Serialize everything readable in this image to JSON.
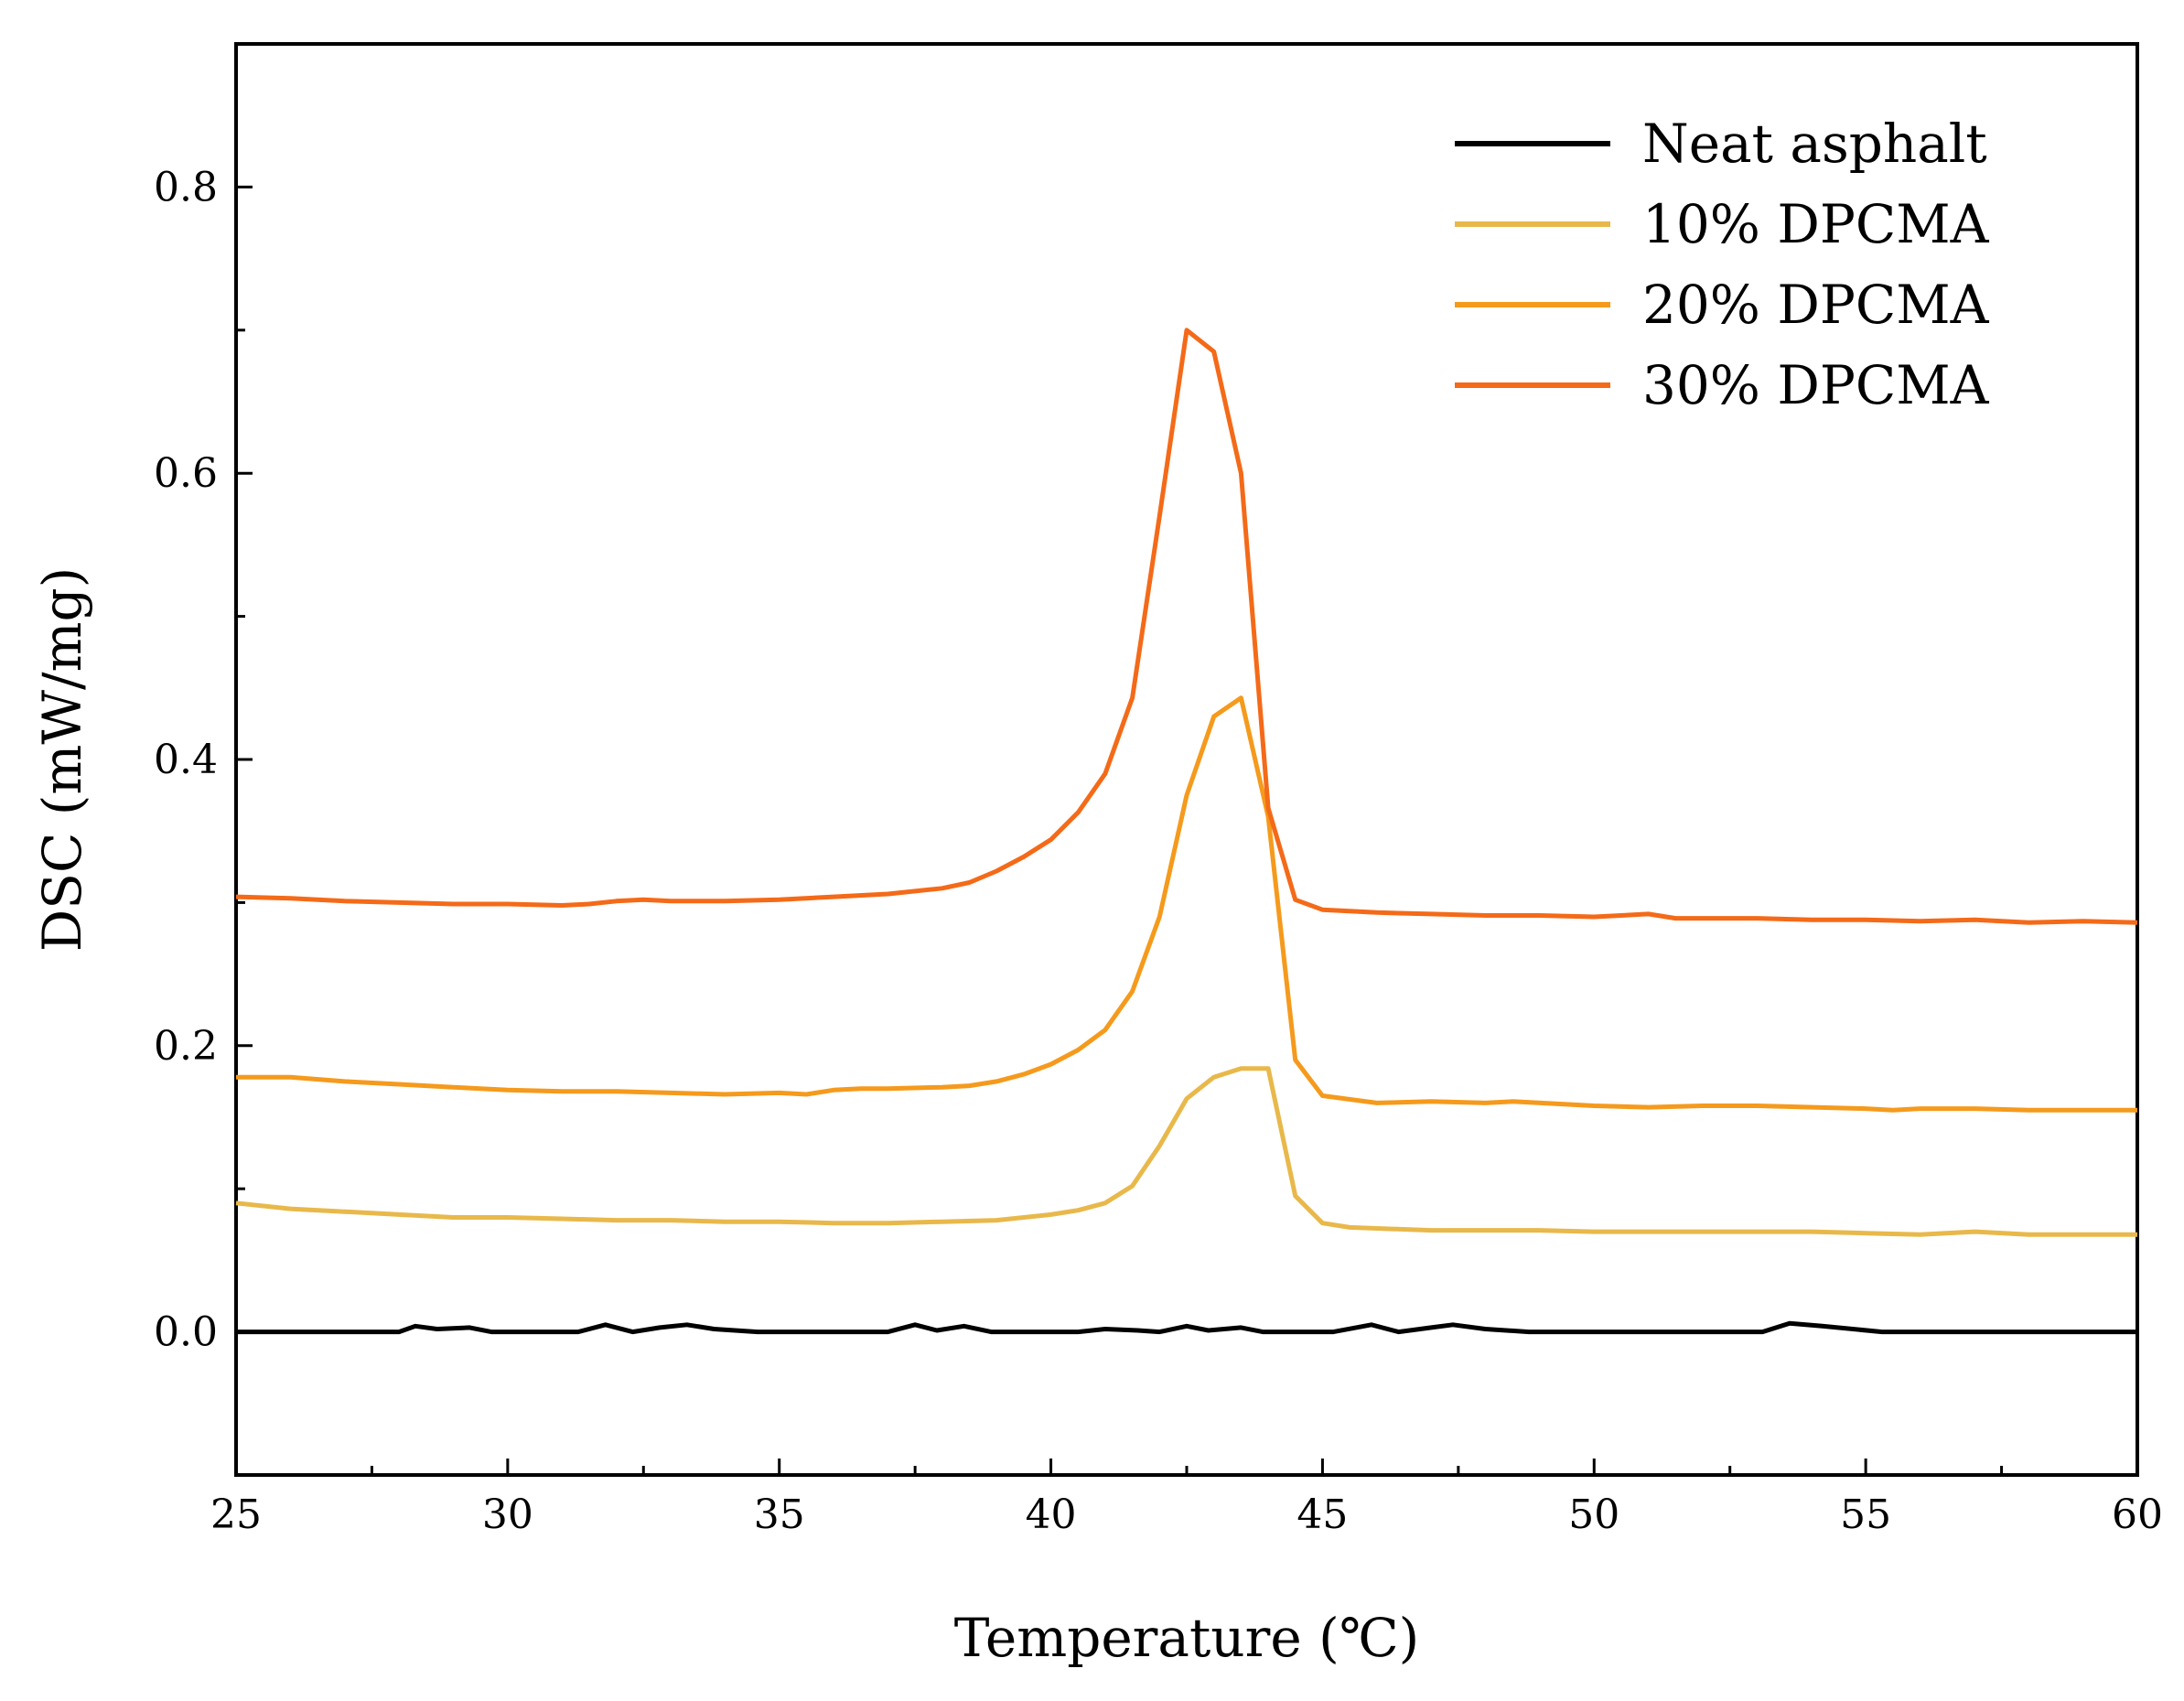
{
  "chart_data": {
    "type": "line",
    "title": "",
    "xlabel": "Temperature (℃)",
    "ylabel": "DSC (mW/mg)",
    "xlim": [
      25,
      60
    ],
    "ylim": [
      -0.1,
      0.9
    ],
    "x_ticks": [
      "25",
      "30",
      "35",
      "40",
      "45",
      "50",
      "55",
      "60"
    ],
    "y_ticks": [
      "0.0",
      "0.2",
      "0.4",
      "0.6",
      "0.8"
    ],
    "legend_position": "top-right",
    "series": [
      {
        "name": "Neat asphalt",
        "color": "#000000",
        "points": [
          [
            25,
            0
          ],
          [
            28,
            0
          ],
          [
            28.3,
            0.004
          ],
          [
            28.7,
            0.002
          ],
          [
            29.3,
            0.003
          ],
          [
            29.7,
            0
          ],
          [
            31.3,
            0
          ],
          [
            31.8,
            0.005
          ],
          [
            32.3,
            0
          ],
          [
            32.8,
            0.003
          ],
          [
            33.3,
            0.005
          ],
          [
            33.8,
            0.002
          ],
          [
            34.6,
            0
          ],
          [
            37,
            0
          ],
          [
            37.5,
            0.005
          ],
          [
            37.9,
            0.001
          ],
          [
            38.4,
            0.004
          ],
          [
            38.9,
            0
          ],
          [
            40.5,
            0
          ],
          [
            41,
            0.002
          ],
          [
            41.6,
            0.001
          ],
          [
            42,
            0
          ],
          [
            42.5,
            0.004
          ],
          [
            42.9,
            0.001
          ],
          [
            43.5,
            0.003
          ],
          [
            43.9,
            0
          ],
          [
            45.2,
            0
          ],
          [
            45.9,
            0.005
          ],
          [
            46.4,
            0
          ],
          [
            47,
            0.003
          ],
          [
            47.4,
            0.005
          ],
          [
            48,
            0.002
          ],
          [
            48.8,
            0
          ],
          [
            53.1,
            0
          ],
          [
            53.6,
            0.006
          ],
          [
            54.2,
            0.004
          ],
          [
            55.3,
            0
          ],
          [
            60,
            0
          ]
        ]
      },
      {
        "name": "10% DPCMA",
        "color": "#E8B84A",
        "points": [
          [
            25,
            0.09
          ],
          [
            26,
            0.086
          ],
          [
            27,
            0.084
          ],
          [
            28,
            0.082
          ],
          [
            29,
            0.08
          ],
          [
            30,
            0.08
          ],
          [
            31,
            0.079
          ],
          [
            32,
            0.078
          ],
          [
            33,
            0.078
          ],
          [
            34,
            0.077
          ],
          [
            35,
            0.077
          ],
          [
            36,
            0.076
          ],
          [
            37,
            0.076
          ],
          [
            38,
            0.077
          ],
          [
            39,
            0.078
          ],
          [
            40,
            0.082
          ],
          [
            40.5,
            0.085
          ],
          [
            41,
            0.09
          ],
          [
            41.5,
            0.102
          ],
          [
            42,
            0.13
          ],
          [
            42.5,
            0.163
          ],
          [
            43,
            0.178
          ],
          [
            43.5,
            0.184
          ],
          [
            44,
            0.184
          ],
          [
            44.5,
            0.095
          ],
          [
            45,
            0.076
          ],
          [
            45.5,
            0.073
          ],
          [
            47,
            0.071
          ],
          [
            48,
            0.071
          ],
          [
            49,
            0.071
          ],
          [
            50,
            0.07
          ],
          [
            52,
            0.07
          ],
          [
            54,
            0.07
          ],
          [
            55,
            0.069
          ],
          [
            56,
            0.068
          ],
          [
            57,
            0.07
          ],
          [
            58,
            0.068
          ],
          [
            60,
            0.068
          ]
        ]
      },
      {
        "name": "20% DPCMA",
        "color": "#F59A1C",
        "points": [
          [
            25,
            0.178
          ],
          [
            26,
            0.178
          ],
          [
            27,
            0.175
          ],
          [
            28,
            0.173
          ],
          [
            29,
            0.171
          ],
          [
            30,
            0.169
          ],
          [
            31,
            0.168
          ],
          [
            32,
            0.168
          ],
          [
            33,
            0.167
          ],
          [
            34,
            0.166
          ],
          [
            35,
            0.167
          ],
          [
            35.5,
            0.166
          ],
          [
            36,
            0.169
          ],
          [
            36.5,
            0.17
          ],
          [
            37,
            0.17
          ],
          [
            38,
            0.171
          ],
          [
            38.5,
            0.172
          ],
          [
            39,
            0.175
          ],
          [
            39.5,
            0.18
          ],
          [
            40,
            0.187
          ],
          [
            40.5,
            0.197
          ],
          [
            41,
            0.211
          ],
          [
            41.5,
            0.238
          ],
          [
            42,
            0.29
          ],
          [
            42.5,
            0.375
          ],
          [
            43,
            0.43
          ],
          [
            43.5,
            0.443
          ],
          [
            44,
            0.36
          ],
          [
            44.5,
            0.19
          ],
          [
            45,
            0.165
          ],
          [
            46,
            0.16
          ],
          [
            47,
            0.161
          ],
          [
            48,
            0.16
          ],
          [
            48.5,
            0.161
          ],
          [
            50,
            0.158
          ],
          [
            51,
            0.157
          ],
          [
            52,
            0.158
          ],
          [
            53,
            0.158
          ],
          [
            55,
            0.156
          ],
          [
            55.5,
            0.155
          ],
          [
            56,
            0.156
          ],
          [
            57,
            0.156
          ],
          [
            58,
            0.155
          ],
          [
            59,
            0.155
          ],
          [
            60,
            0.155
          ]
        ]
      },
      {
        "name": "30% DPCMA",
        "color": "#F46A18",
        "points": [
          [
            25,
            0.304
          ],
          [
            26,
            0.303
          ],
          [
            27,
            0.301
          ],
          [
            28,
            0.3
          ],
          [
            29,
            0.299
          ],
          [
            30,
            0.299
          ],
          [
            31,
            0.298
          ],
          [
            31.5,
            0.299
          ],
          [
            32,
            0.301
          ],
          [
            32.5,
            0.302
          ],
          [
            33,
            0.301
          ],
          [
            34,
            0.301
          ],
          [
            35,
            0.302
          ],
          [
            36,
            0.304
          ],
          [
            37,
            0.306
          ],
          [
            38,
            0.31
          ],
          [
            38.5,
            0.314
          ],
          [
            39,
            0.322
          ],
          [
            39.5,
            0.332
          ],
          [
            40,
            0.344
          ],
          [
            40.5,
            0.363
          ],
          [
            41,
            0.39
          ],
          [
            41.5,
            0.443
          ],
          [
            42,
            0.57
          ],
          [
            42.5,
            0.7
          ],
          [
            43,
            0.685
          ],
          [
            43.5,
            0.6
          ],
          [
            44,
            0.366
          ],
          [
            44.5,
            0.302
          ],
          [
            45,
            0.295
          ],
          [
            46,
            0.293
          ],
          [
            47,
            0.292
          ],
          [
            48,
            0.291
          ],
          [
            49,
            0.291
          ],
          [
            50,
            0.29
          ],
          [
            51,
            0.292
          ],
          [
            51.5,
            0.289
          ],
          [
            53,
            0.289
          ],
          [
            54,
            0.288
          ],
          [
            55,
            0.288
          ],
          [
            56,
            0.287
          ],
          [
            57,
            0.288
          ],
          [
            58,
            0.286
          ],
          [
            59,
            0.287
          ],
          [
            60,
            0.286
          ]
        ]
      }
    ]
  }
}
